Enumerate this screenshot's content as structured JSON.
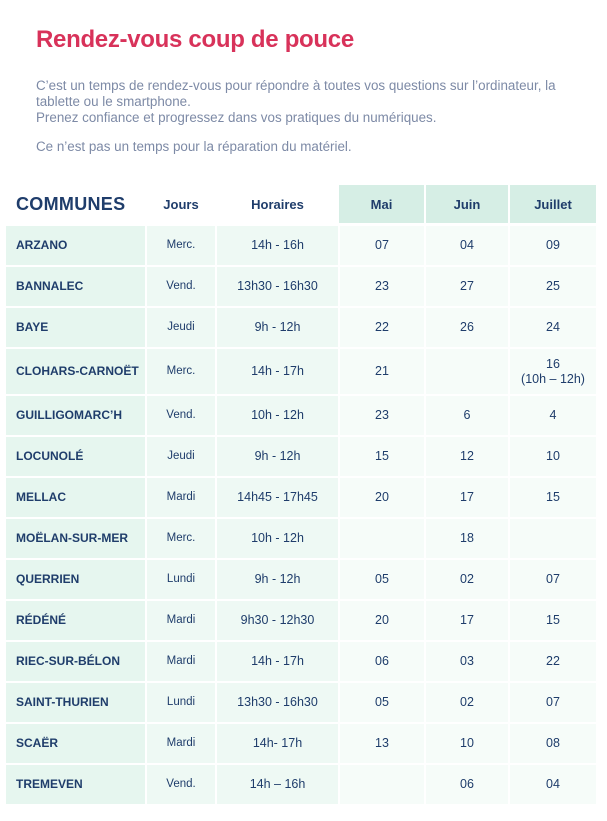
{
  "title": "Rendez-vous coup de pouce",
  "intro": {
    "line1": "C’est un temps de rendez-vous pour répondre à toutes vos questions sur l’ordinateur, la tablette ou le smartphone.",
    "line2": "Prenez confiance et progressez dans vos pratiques du numériques.",
    "note": "Ce n’est pas un temps pour la réparation du matériel."
  },
  "table": {
    "headers": {
      "communes": "COMMUNES",
      "jours": "Jours",
      "horaires": "Horaires",
      "mai": "Mai",
      "juin": "Juin",
      "juillet": "Juillet"
    },
    "rows": [
      {
        "commune": "ARZANO",
        "jour": "Merc.",
        "horaire": "14h - 16h",
        "mai": "07",
        "juin": "04",
        "juillet": "09"
      },
      {
        "commune": "BANNALEC",
        "jour": "Vend.",
        "horaire": "13h30 - 16h30",
        "mai": "23",
        "juin": "27",
        "juillet": "25"
      },
      {
        "commune": "BAYE",
        "jour": "Jeudi",
        "horaire": "9h - 12h",
        "mai": "22",
        "juin": "26",
        "juillet": "24"
      },
      {
        "commune": "CLOHARS-CARNOËT",
        "jour": "Merc.",
        "horaire": "14h - 17h",
        "mai": "21",
        "juin": "",
        "juillet": "16",
        "juillet_extra": "(10h – 12h)"
      },
      {
        "commune": "GUILLIGOMARC’H",
        "jour": "Vend.",
        "horaire": "10h - 12h",
        "mai": "23",
        "juin": "6",
        "juillet": "4"
      },
      {
        "commune": "LOCUNOLÉ",
        "jour": "Jeudi",
        "horaire": "9h - 12h",
        "mai": "15",
        "juin": "12",
        "juillet": "10"
      },
      {
        "commune": "MELLAC",
        "jour": "Mardi",
        "horaire": "14h45 - 17h45",
        "mai": "20",
        "juin": "17",
        "juillet": "15"
      },
      {
        "commune": "MOËLAN-SUR-MER",
        "jour": "Merc.",
        "horaire": "10h - 12h",
        "mai": "",
        "juin": "18",
        "juillet": ""
      },
      {
        "commune": "QUERRIEN",
        "jour": "Lundi",
        "horaire": "9h - 12h",
        "mai": "05",
        "juin": "02",
        "juillet": "07"
      },
      {
        "commune": "RÉDÉNÉ",
        "jour": "Mardi",
        "horaire": "9h30 - 12h30",
        "mai": "20",
        "juin": "17",
        "juillet": "15"
      },
      {
        "commune": "RIEC-SUR-BÉLON",
        "jour": "Mardi",
        "horaire": "14h - 17h",
        "mai": "06",
        "juin": "03",
        "juillet": "22"
      },
      {
        "commune": "SAINT-THURIEN",
        "jour": "Lundi",
        "horaire": "13h30 - 16h30",
        "mai": "05",
        "juin": "02",
        "juillet": "07"
      },
      {
        "commune": "SCAËR",
        "jour": "Mardi",
        "horaire": "14h- 17h",
        "mai": "13",
        "juin": "10",
        "juillet": "08"
      },
      {
        "commune": "TREMEVEN",
        "jour": "Vend.",
        "horaire": "14h – 16h",
        "mai": "",
        "juin": "06",
        "juillet": "04"
      }
    ]
  },
  "colors": {
    "title": "#d8325a",
    "text": "#1f3d6b",
    "intro": "#7d8aa6",
    "header_month_bg": "#d6eee5",
    "cell_bg": "#eef9f4"
  }
}
